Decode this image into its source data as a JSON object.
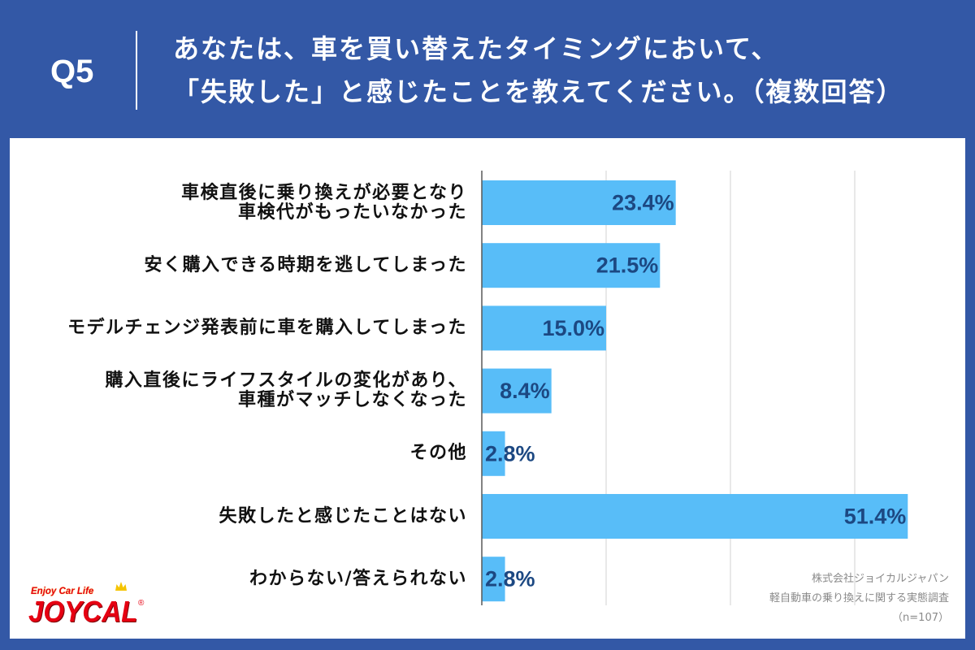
{
  "header": {
    "question_number": "Q5"
  },
  "chart_data": {
    "type": "bar",
    "orientation": "horizontal",
    "title": "あなたは、車を買い替えたタイミングにおいて、\n「失敗した」と感じたことを教えてください。（複数回答）",
    "categories": [
      "車検直後に乗り換えが必要となり\n車検代がもったいなかった",
      "安く購入できる時期を逃してしまった",
      "モデルチェンジ発表前に車を購入してしまった",
      "購入直後にライフスタイルの変化があり、\n車種がマッチしなくなった",
      "その他",
      "失敗したと感じたことはない",
      "わからない/答えられない"
    ],
    "values": [
      23.4,
      21.5,
      15.0,
      8.4,
      2.8,
      51.4,
      2.8
    ],
    "value_labels": [
      "23.4%",
      "21.5%",
      "15.0%",
      "8.4%",
      "2.8%",
      "51.4%",
      "2.8%"
    ],
    "xlim": [
      0,
      60
    ],
    "x_gridlines": [
      15,
      30,
      45
    ],
    "grid": true
  },
  "source": {
    "company": "株式会社ジョイカルジャパン",
    "survey_name": "軽自動車の乗り換えに関する実態調査",
    "sample_size": "（n=107）"
  },
  "logo": {
    "tagline": "Enjoy Car Life",
    "name": "JOYCAL",
    "registered_mark": "®"
  },
  "icons": {
    "logo_crown": "crown-icon"
  },
  "colors": {
    "header_bg": "#3358a6",
    "header_text": "#ffffff",
    "panel_bg": "#ffffff",
    "bar": "#58bdf8",
    "value_label": "#1c4882",
    "category_text": "#111111",
    "gridline": "#d0d0d0",
    "axis": "#595959",
    "source_text": "#8a8a8a",
    "logo_red": "#e60012",
    "logo_yellow": "#f5c400"
  }
}
